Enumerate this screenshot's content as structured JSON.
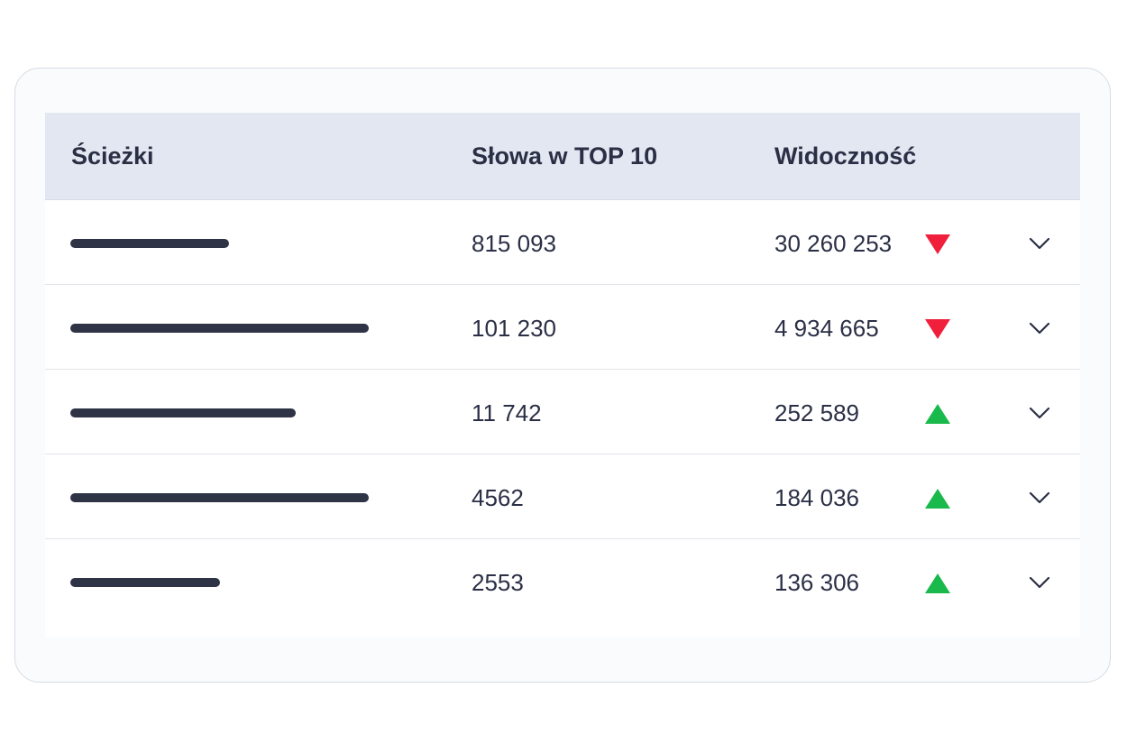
{
  "headers": {
    "paths": "Ścieżki",
    "top10": "Słowa w TOP 10",
    "visibility": "Widoczność"
  },
  "colors": {
    "down": "#f0203c",
    "up": "#19b94c",
    "header_bg": "#e3e7f1",
    "text": "#2b2f45"
  },
  "rows": [
    {
      "top10": "815 093",
      "visibility": "30 260 253",
      "trend": "down",
      "trend_icon": "triangle-down-icon",
      "expand_icon": "chevron-down-icon"
    },
    {
      "top10": "101 230",
      "visibility": "4 934 665",
      "trend": "down",
      "trend_icon": "triangle-down-icon",
      "expand_icon": "chevron-down-icon"
    },
    {
      "top10": "11 742",
      "visibility": "252 589",
      "trend": "up",
      "trend_icon": "triangle-up-icon",
      "expand_icon": "chevron-down-icon"
    },
    {
      "top10": "4562",
      "visibility": "184 036",
      "trend": "up",
      "trend_icon": "triangle-up-icon",
      "expand_icon": "chevron-down-icon"
    },
    {
      "top10": "2553",
      "visibility": "136 306",
      "trend": "up",
      "trend_icon": "triangle-up-icon",
      "expand_icon": "chevron-down-icon"
    }
  ]
}
